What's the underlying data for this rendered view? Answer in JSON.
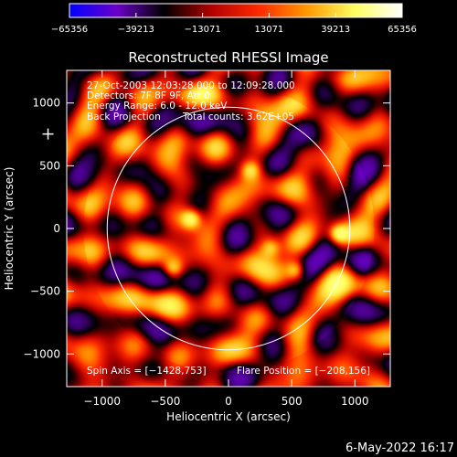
{
  "chart_data": {
    "type": "heatmap",
    "title": "Reconstructed RHESSI Image",
    "xlabel": "Heliocentric X (arcsec)",
    "ylabel": "Heliocentric Y (arcsec)",
    "xlim": [
      -1280,
      1280
    ],
    "ylim": [
      -1260,
      1260
    ],
    "x_ticks": [
      {
        "value": -1000,
        "label": "−1000"
      },
      {
        "value": -500,
        "label": "−500"
      },
      {
        "value": 0,
        "label": "0"
      },
      {
        "value": 500,
        "label": "500"
      },
      {
        "value": 1000,
        "label": "1000"
      }
    ],
    "y_ticks": [
      {
        "value": 1000,
        "label": "1000"
      },
      {
        "value": 500,
        "label": "500"
      },
      {
        "value": 0,
        "label": "0"
      },
      {
        "value": -500,
        "label": "−500"
      },
      {
        "value": -1000,
        "label": "−1000"
      }
    ],
    "colorbar": {
      "ticks": [
        "−65356",
        "−39213",
        "−13071",
        "13071",
        "39213",
        "65356"
      ],
      "range": [
        -65356,
        65356
      ],
      "colors": [
        "#0000ff",
        "#6a00c8",
        "#000000",
        "#b40000",
        "#ff2a00",
        "#ff9a00",
        "#ffff60",
        "#ffffff"
      ]
    },
    "annotations": {
      "time_range": "27-Oct-2003 12:03:28.000 to 12:09:28.000",
      "detectors": "Detectors: 7F 8F 9F, Att 0",
      "energy": "Energy Range: 6.0 - 12.0 keV",
      "method": "Back Projection",
      "counts": "Total counts: 3.62E+05",
      "spin_axis": "Spin Axis = [−1428,753]",
      "flare_position": "Flare Position = [−208,156]"
    },
    "solar_limb": {
      "center": [
        0,
        0
      ],
      "radius": 960
    },
    "plus_marker": {
      "x": -1428,
      "y": 753
    },
    "hot_spots": [
      {
        "x": -300,
        "y": 80,
        "level": 1.0
      },
      {
        "x": 870,
        "y": -40,
        "level": 1.0
      },
      {
        "x": 530,
        "y": -330,
        "level": 0.8
      },
      {
        "x": -440,
        "y": -320,
        "level": 0.75
      },
      {
        "x": 170,
        "y": 470,
        "level": 0.7
      },
      {
        "x": 330,
        "y": -150,
        "level": 0.65
      }
    ],
    "grid": false
  },
  "footer": {
    "date": "6-May-2022 16:17"
  }
}
